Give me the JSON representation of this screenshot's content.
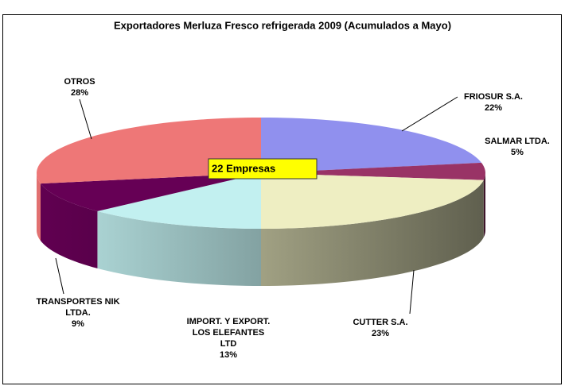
{
  "chart_data": {
    "type": "pie",
    "title": "Exportadores Merluza Fresco refrigerada 2009 (Acumulados a Mayo)",
    "annotation": "22 Empresas",
    "categories": [
      "FRIOSUR S.A.",
      "SALMAR LTDA.",
      "CUTTER S.A.",
      "IMPORT. Y EXPORT.\nLOS ELEFANTES\nLTD",
      "TRANSPORTES NIK\nLTDA.",
      "OTROS"
    ],
    "values": [
      22,
      5,
      23,
      13,
      9,
      28
    ],
    "value_labels": [
      "22%",
      "5%",
      "23%",
      "13%",
      "9%",
      "28%"
    ],
    "colors": [
      "#9090ee",
      "#993366",
      "#eeeec2",
      "#c2f0f0",
      "#660055",
      "#ee7777"
    ]
  }
}
